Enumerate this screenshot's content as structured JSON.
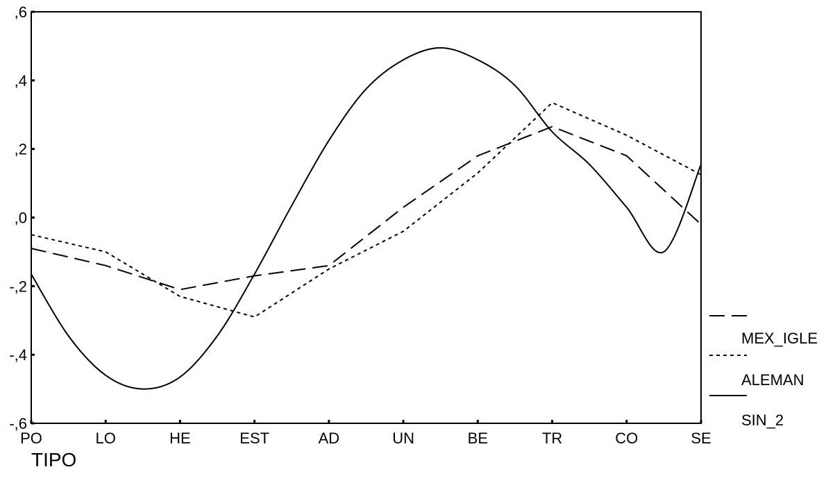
{
  "chart_data": {
    "type": "line",
    "title": "",
    "xlabel": "TIPO",
    "ylabel": "",
    "categories": [
      "PO",
      "LO",
      "HE",
      "EST",
      "AD",
      "UN",
      "BE",
      "TR",
      "CO",
      "SE"
    ],
    "ylim": [
      -0.6,
      0.6
    ],
    "yticks": [
      -0.6,
      -0.4,
      -0.2,
      0.0,
      0.2,
      0.4,
      0.6
    ],
    "ytick_labels": [
      "-,6",
      "-,4",
      "-,2",
      ",0",
      ",2",
      ",4",
      ",6"
    ],
    "grid": false,
    "legend_position": "right",
    "series": [
      {
        "name": "MEX_IGLE",
        "style": "long-dash",
        "color": "#000000",
        "values": [
          -0.09,
          -0.14,
          -0.21,
          -0.17,
          -0.14,
          0.03,
          0.18,
          0.265,
          0.18,
          -0.02
        ]
      },
      {
        "name": "ALEMAN",
        "style": "dotted",
        "color": "#000000",
        "values": [
          -0.05,
          -0.1,
          -0.23,
          -0.29,
          -0.15,
          -0.04,
          0.13,
          0.335,
          0.24,
          0.125
        ]
      },
      {
        "name": "SIN_2",
        "style": "solid",
        "color": "#000000",
        "x": [
          0,
          0.5,
          1,
          1.5,
          2,
          2.5,
          3,
          3.5,
          4,
          4.5,
          5,
          5.5,
          6,
          6.5,
          7,
          7.5,
          8,
          8.5,
          9
        ],
        "values": [
          -0.165,
          -0.345,
          -0.46,
          -0.5,
          -0.465,
          -0.345,
          -0.165,
          0.035,
          0.225,
          0.375,
          0.46,
          0.495,
          0.46,
          0.385,
          0.25,
          0.155,
          0.03,
          -0.1,
          0.155
        ]
      }
    ]
  }
}
